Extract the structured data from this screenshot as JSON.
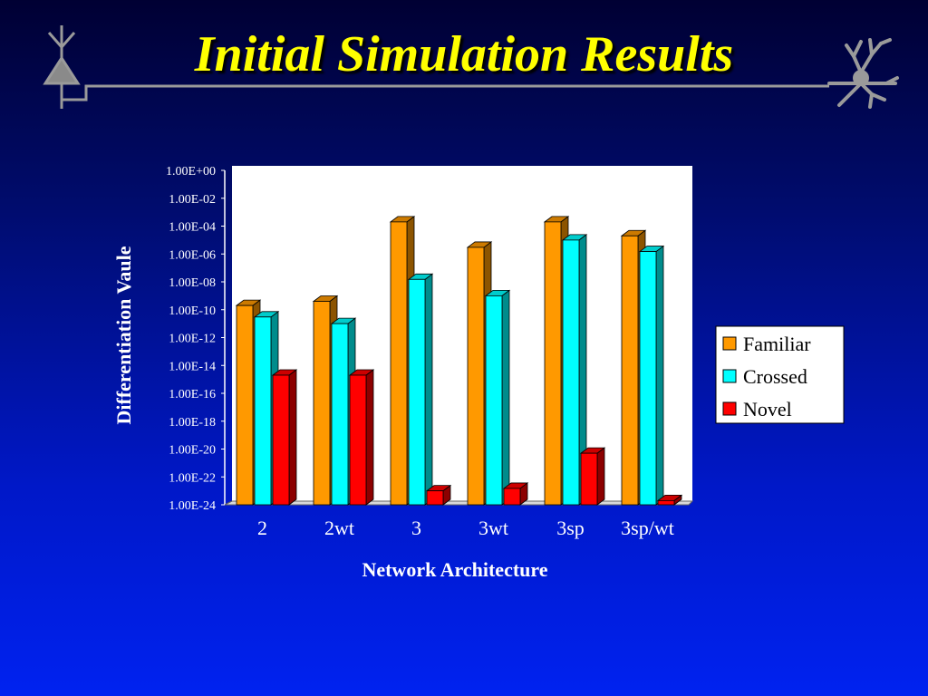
{
  "slide": {
    "title": "Initial Simulation Results"
  },
  "icons": {
    "left": "neuron-symbol-icon",
    "right": "dendrite-neuron-icon"
  },
  "colors": {
    "familiar": "#ff9900",
    "crossed": "#00ffff",
    "novel": "#ff0000"
  },
  "chart_data": {
    "type": "bar",
    "title": "",
    "xlabel": "Network Architecture",
    "ylabel": "Differentiation Vaule",
    "yscale": "log",
    "ylim": [
      1e-24,
      1
    ],
    "ytick_labels": [
      "1.00E+00",
      "1.00E-02",
      "1.00E-04",
      "1.00E-06",
      "1.00E-08",
      "1.00E-10",
      "1.00E-12",
      "1.00E-14",
      "1.00E-16",
      "1.00E-18",
      "1.00E-20",
      "1.00E-22",
      "1.00E-24"
    ],
    "categories": [
      "2",
      "2wt",
      "3",
      "3wt",
      "3sp",
      "3sp/wt"
    ],
    "legend_position": "right",
    "series": [
      {
        "name": "Familiar",
        "values": [
          2e-10,
          4e-10,
          0.0002,
          3e-06,
          0.0002,
          2e-05
        ]
      },
      {
        "name": "Crossed",
        "values": [
          3e-11,
          1e-11,
          1.5e-08,
          1e-09,
          1e-05,
          1.5e-06
        ]
      },
      {
        "name": "Novel",
        "values": [
          2e-15,
          2e-15,
          1e-23,
          1.5e-23,
          5e-21,
          2e-24
        ]
      }
    ]
  }
}
